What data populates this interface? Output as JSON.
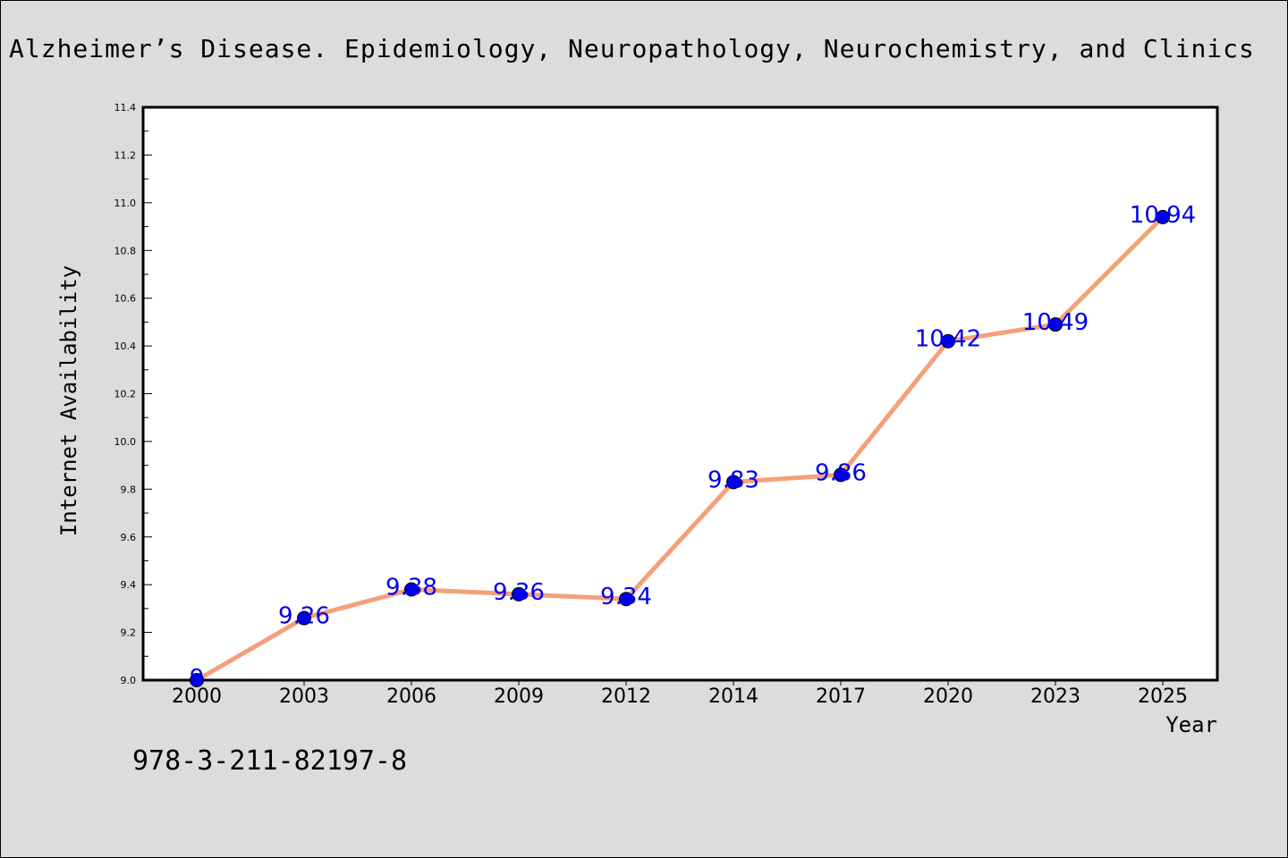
{
  "title": "Alzheimer’s Disease. Epidemiology, Neuropathology, Neurochemistry, and Clinics",
  "isbn": "978-3-211-82197-8",
  "chart_data": {
    "type": "line",
    "categories": [
      "2000",
      "2003",
      "2006",
      "2009",
      "2012",
      "2014",
      "2017",
      "2020",
      "2023",
      "2025"
    ],
    "values": [
      9,
      9.26,
      9.38,
      9.36,
      9.34,
      9.83,
      9.86,
      10.42,
      10.49,
      10.94
    ],
    "data_labels": [
      "9",
      "9.26",
      "9.38",
      "9.36",
      "9.34",
      "9.83",
      "9.86",
      "10.42",
      "10.49",
      "10.94"
    ],
    "xlabel": "Year",
    "ylabel": "Internet Availability",
    "ylim": [
      9.0,
      11.4
    ],
    "yticks": [
      "9.0",
      "9.2",
      "9.4",
      "9.6",
      "9.8",
      "10.0",
      "10.2",
      "10.4",
      "10.6",
      "10.8",
      "11.0",
      "11.2",
      "11.4"
    ],
    "grid": false,
    "line_color": "#f4a07a",
    "marker_color": "#0000ee",
    "label_color": "#0000ee"
  }
}
